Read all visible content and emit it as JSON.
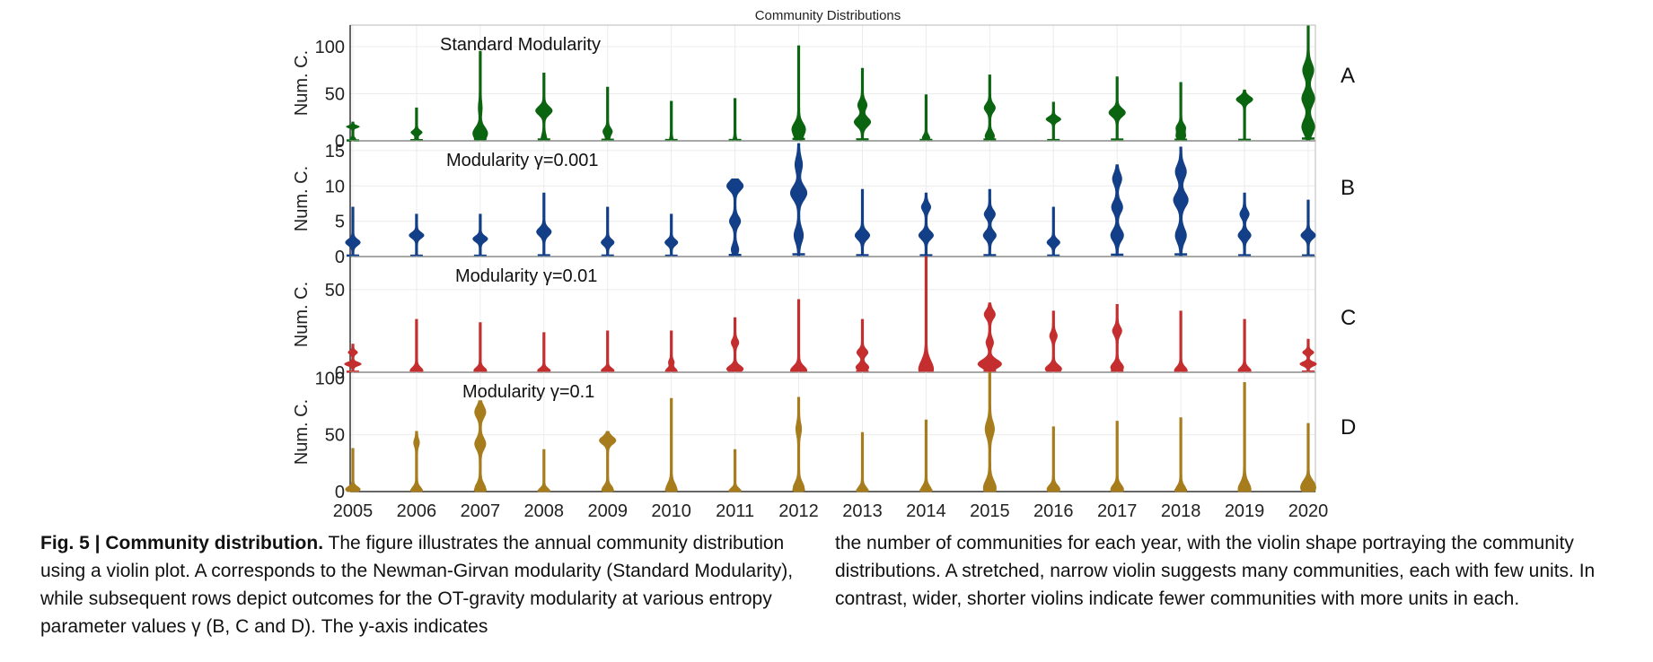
{
  "chart_data": {
    "type": "violin",
    "title": "Community Distributions",
    "xlabel": "",
    "categories": [
      "2005",
      "2006",
      "2007",
      "2008",
      "2009",
      "2010",
      "2011",
      "2012",
      "2013",
      "2014",
      "2015",
      "2016",
      "2017",
      "2018",
      "2019",
      "2020"
    ],
    "panels": [
      {
        "letter": "A",
        "label": "Standard Modularity",
        "ylabel": "Num. C.",
        "ylim": [
          0,
          120
        ],
        "yticks": [
          0,
          50,
          100
        ],
        "color": "#0b6410",
        "violins": [
          {
            "min": 0,
            "max": 20,
            "bulges": [
              [
                2,
                2
              ],
              [
                15,
                6
              ]
            ]
          },
          {
            "min": 0,
            "max": 35,
            "bulges": [
              [
                2,
                1
              ],
              [
                9,
                5
              ]
            ]
          },
          {
            "min": 0,
            "max": 95,
            "bulges": [
              [
                2,
                2
              ],
              [
                9,
                6
              ],
              [
                35,
                1
              ]
            ]
          },
          {
            "min": 0,
            "max": 72,
            "bulges": [
              [
                2,
                2
              ],
              [
                32,
                8
              ]
            ]
          },
          {
            "min": 0,
            "max": 57,
            "bulges": [
              [
                2,
                1
              ],
              [
                10,
                4
              ]
            ]
          },
          {
            "min": 0,
            "max": 42,
            "bulges": [
              [
                1,
                1
              ]
            ]
          },
          {
            "min": 0,
            "max": 45,
            "bulges": [
              [
                1,
                1
              ]
            ]
          },
          {
            "min": 0,
            "max": 101,
            "bulges": [
              [
                2,
                2
              ],
              [
                13,
                6
              ]
            ]
          },
          {
            "min": 0,
            "max": 77,
            "bulges": [
              [
                20,
                8
              ],
              [
                38,
                4
              ]
            ]
          },
          {
            "min": 0,
            "max": 49,
            "bulges": [
              [
                3,
                3
              ]
            ]
          },
          {
            "min": 0,
            "max": 70,
            "bulges": [
              [
                5,
                4
              ],
              [
                35,
                5
              ]
            ]
          },
          {
            "min": 0,
            "max": 41,
            "bulges": [
              [
                23,
                7
              ]
            ]
          },
          {
            "min": 0,
            "max": 68,
            "bulges": [
              [
                30,
                8
              ]
            ]
          },
          {
            "min": 0,
            "max": 62,
            "bulges": [
              [
                5,
                4
              ],
              [
                14,
                4
              ]
            ]
          },
          {
            "min": 0,
            "max": 54,
            "bulges": [
              [
                44,
                8
              ]
            ]
          },
          {
            "min": 0,
            "max": 122,
            "bulges": [
              [
                15,
                6
              ],
              [
                45,
                6
              ],
              [
                75,
                5
              ]
            ]
          }
        ]
      },
      {
        "letter": "B",
        "label": "Modularity γ=0.001",
        "ylabel": "Num. C.",
        "ylim": [
          0,
          16
        ],
        "yticks": [
          0,
          5,
          10,
          15
        ],
        "color": "#123f87",
        "violins": [
          {
            "min": 0,
            "max": 7,
            "bulges": [
              [
                2,
                7
              ]
            ]
          },
          {
            "min": 0,
            "max": 6,
            "bulges": [
              [
                3,
                7
              ]
            ]
          },
          {
            "min": 0,
            "max": 6,
            "bulges": [
              [
                2.5,
                7
              ]
            ]
          },
          {
            "min": 0,
            "max": 9,
            "bulges": [
              [
                3.5,
                7
              ]
            ]
          },
          {
            "min": 0,
            "max": 7,
            "bulges": [
              [
                2,
                6
              ]
            ]
          },
          {
            "min": 0,
            "max": 6,
            "bulges": [
              [
                2,
                6
              ]
            ]
          },
          {
            "min": 0,
            "max": 11,
            "bulges": [
              [
                1,
                3
              ],
              [
                5,
                5
              ],
              [
                10,
                8
              ]
            ]
          },
          {
            "min": 0,
            "max": 16,
            "bulges": [
              [
                3,
                4
              ],
              [
                9,
                8
              ],
              [
                13,
                3
              ]
            ]
          },
          {
            "min": 0,
            "max": 9.5,
            "bulges": [
              [
                3,
                7
              ]
            ]
          },
          {
            "min": 0,
            "max": 9,
            "bulges": [
              [
                3,
                7
              ],
              [
                7,
                4
              ]
            ]
          },
          {
            "min": 0,
            "max": 9.5,
            "bulges": [
              [
                3,
                6
              ],
              [
                6,
                5
              ]
            ]
          },
          {
            "min": 0,
            "max": 7,
            "bulges": [
              [
                2,
                6
              ]
            ]
          },
          {
            "min": 0,
            "max": 13,
            "bulges": [
              [
                3,
                6
              ],
              [
                7,
                5
              ],
              [
                11,
                4
              ]
            ]
          },
          {
            "min": 0,
            "max": 15.5,
            "bulges": [
              [
                3,
                5
              ],
              [
                8,
                7
              ],
              [
                12,
                5
              ]
            ]
          },
          {
            "min": 0,
            "max": 9,
            "bulges": [
              [
                3,
                6
              ],
              [
                6,
                4
              ]
            ]
          },
          {
            "min": 0,
            "max": 8,
            "bulges": [
              [
                3,
                7
              ]
            ]
          }
        ]
      },
      {
        "letter": "C",
        "label": "Modularity γ=0.01",
        "ylabel": "Num. C.",
        "ylim": [
          0,
          70
        ],
        "yticks": [
          0,
          50
        ],
        "color": "#c42e2e",
        "violins": [
          {
            "min": 0,
            "max": 17,
            "bulges": [
              [
                5,
                8
              ],
              [
                12,
                4
              ]
            ]
          },
          {
            "min": 0,
            "max": 32,
            "bulges": [
              [
                1,
                6
              ]
            ]
          },
          {
            "min": 0,
            "max": 30,
            "bulges": [
              [
                1,
                6
              ]
            ]
          },
          {
            "min": 0,
            "max": 24,
            "bulges": [
              [
                1,
                6
              ]
            ]
          },
          {
            "min": 0,
            "max": 25,
            "bulges": [
              [
                1,
                6
              ]
            ]
          },
          {
            "min": 0,
            "max": 25,
            "bulges": [
              [
                1,
                5
              ],
              [
                6,
                2
              ]
            ]
          },
          {
            "min": 0,
            "max": 33,
            "bulges": [
              [
                2,
                8
              ],
              [
                18,
                3
              ]
            ]
          },
          {
            "min": 0,
            "max": 44,
            "bulges": [
              [
                1,
                8
              ]
            ]
          },
          {
            "min": 0,
            "max": 32,
            "bulges": [
              [
                3,
                6
              ],
              [
                12,
                5
              ]
            ]
          },
          {
            "min": 0,
            "max": 70,
            "bulges": [
              [
                1,
                6
              ],
              [
                6,
                2
              ]
            ]
          },
          {
            "min": 0,
            "max": 42,
            "bulges": [
              [
                5,
                12
              ],
              [
                18,
                3
              ],
              [
                35,
                5
              ]
            ]
          },
          {
            "min": 0,
            "max": 37,
            "bulges": [
              [
                2,
                8
              ],
              [
                22,
                3
              ]
            ]
          },
          {
            "min": 0,
            "max": 41,
            "bulges": [
              [
                3,
                6
              ],
              [
                25,
                4
              ]
            ]
          },
          {
            "min": 0,
            "max": 37,
            "bulges": [
              [
                1,
                6
              ]
            ]
          },
          {
            "min": 0,
            "max": 32,
            "bulges": [
              [
                1,
                6
              ]
            ]
          },
          {
            "min": 0,
            "max": 20,
            "bulges": [
              [
                5,
                8
              ],
              [
                12,
                5
              ]
            ]
          }
        ]
      },
      {
        "letter": "D",
        "label": "Modularity γ=0.1",
        "ylabel": "Num. C.",
        "ylim": [
          0,
          105
        ],
        "yticks": [
          0,
          50,
          100
        ],
        "color": "#a67c1c",
        "violins": [
          {
            "min": 0,
            "max": 38,
            "bulges": [
              [
                2,
                7
              ]
            ]
          },
          {
            "min": 0,
            "max": 53,
            "bulges": [
              [
                1,
                5
              ],
              [
                43,
                2
              ]
            ]
          },
          {
            "min": 0,
            "max": 80,
            "bulges": [
              [
                2,
                5
              ],
              [
                42,
                5
              ],
              [
                70,
                5
              ]
            ]
          },
          {
            "min": 0,
            "max": 37,
            "bulges": [
              [
                1,
                5
              ]
            ]
          },
          {
            "min": 0,
            "max": 53,
            "bulges": [
              [
                2,
                5
              ],
              [
                45,
                8
              ]
            ]
          },
          {
            "min": 0,
            "max": 82,
            "bulges": [
              [
                2,
                5
              ]
            ]
          },
          {
            "min": 0,
            "max": 37,
            "bulges": [
              [
                1,
                5
              ]
            ]
          },
          {
            "min": 0,
            "max": 83,
            "bulges": [
              [
                3,
                5
              ],
              [
                55,
                2
              ]
            ]
          },
          {
            "min": 0,
            "max": 52,
            "bulges": [
              [
                1,
                5
              ]
            ]
          },
          {
            "min": 0,
            "max": 63,
            "bulges": [
              [
                1,
                5
              ]
            ]
          },
          {
            "min": 0,
            "max": 105,
            "bulges": [
              [
                3,
                6
              ],
              [
                55,
                4
              ]
            ]
          },
          {
            "min": 0,
            "max": 57,
            "bulges": [
              [
                2,
                6
              ]
            ]
          },
          {
            "min": 0,
            "max": 62,
            "bulges": [
              [
                2,
                6
              ]
            ]
          },
          {
            "min": 0,
            "max": 65,
            "bulges": [
              [
                1,
                5
              ]
            ]
          },
          {
            "min": 0,
            "max": 96,
            "bulges": [
              [
                2,
                6
              ]
            ]
          },
          {
            "min": 0,
            "max": 60,
            "bulges": [
              [
                2,
                6
              ],
              [
                8,
                4
              ]
            ]
          }
        ]
      }
    ]
  },
  "caption": {
    "fig_label": "Fig. 5 | Community distribution.",
    "left_text": " The figure illustrates the annual community distribution using a violin plot. A corresponds to the Newman-Girvan modularity (Standard Modularity), while subsequent rows depict outcomes for the OT-gravity modularity at various entropy parameter values γ (B, C and D). The y-axis indicates",
    "right_text": "the number of communities for each year, with the violin shape portraying the community distributions. A stretched, narrow violin suggests many communities, each with few units. In contrast, wider, shorter violins indicate fewer communities with more units in each."
  }
}
